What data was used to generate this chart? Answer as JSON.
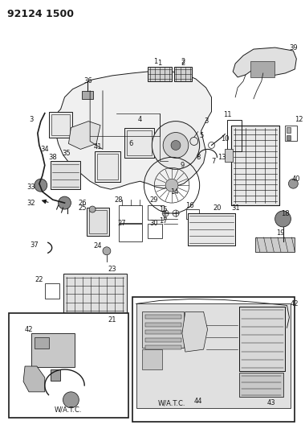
{
  "title": "92124 1500",
  "bg": "#ffffff",
  "fg": "#1a1a1a",
  "fig_w": 3.8,
  "fig_h": 5.33,
  "dpi": 100,
  "title_fs": 9,
  "label_fs": 6,
  "lw": 0.7
}
